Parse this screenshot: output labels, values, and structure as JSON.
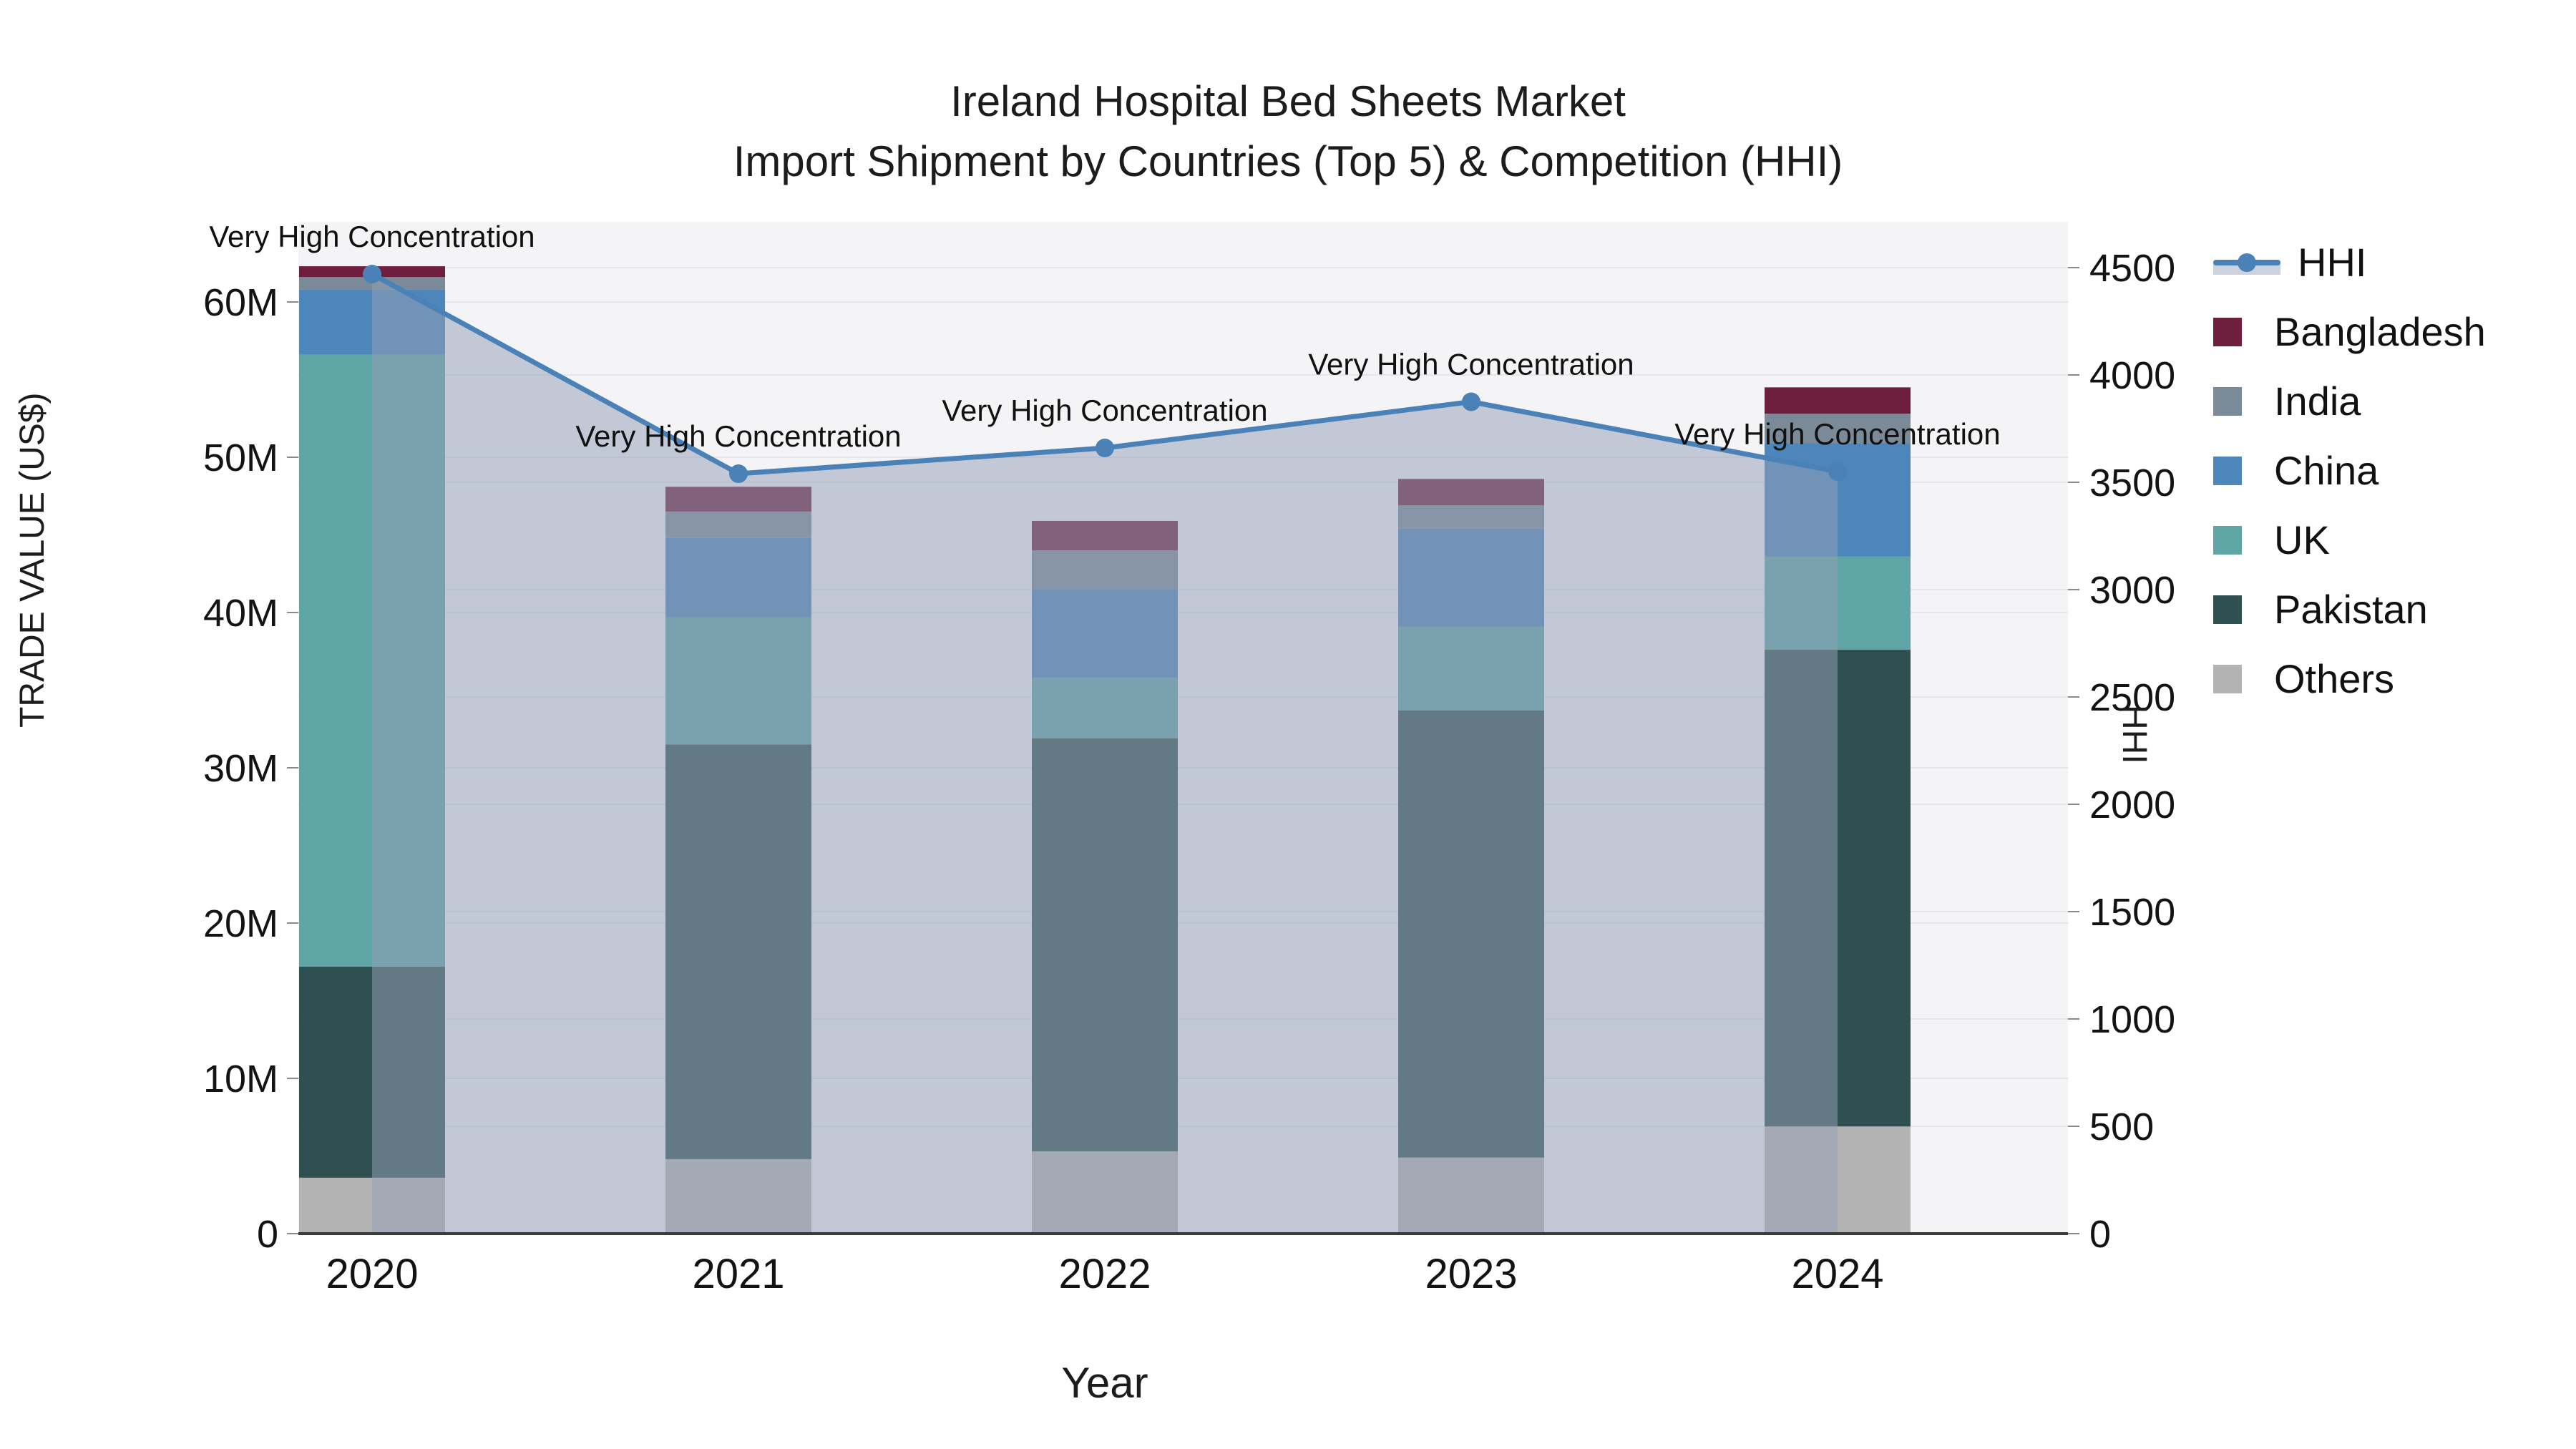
{
  "title": {
    "line1": "Ireland Hospital Bed Sheets Market",
    "line2": "Import Shipment by Countries (Top 5) & Competition (HHI)"
  },
  "axes": {
    "left": {
      "title": "TRADE VALUE (US$)",
      "tick_labels": [
        "0",
        "10M",
        "20M",
        "30M",
        "40M",
        "50M",
        "60M"
      ],
      "tick_values": [
        0,
        10,
        20,
        30,
        40,
        50,
        60
      ],
      "unit": "M US$"
    },
    "right": {
      "title": "HHI",
      "tick_labels": [
        "0",
        "500",
        "1000",
        "1500",
        "2000",
        "2500",
        "3000",
        "3500",
        "4000",
        "4500"
      ],
      "tick_values": [
        0,
        500,
        1000,
        1500,
        2000,
        2500,
        3000,
        3500,
        4000,
        4500
      ]
    },
    "x": {
      "title": "Year",
      "categories": [
        "2020",
        "2021",
        "2022",
        "2023",
        "2024"
      ]
    }
  },
  "legend": {
    "items": [
      {
        "label": "HHI",
        "type": "line",
        "color": "#4a82b8"
      },
      {
        "label": "Bangladesh",
        "type": "box",
        "color": "#6e1f3e"
      },
      {
        "label": "India",
        "type": "box",
        "color": "#7b8a99"
      },
      {
        "label": "China",
        "type": "box",
        "color": "#4c86bb"
      },
      {
        "label": "UK",
        "type": "box",
        "color": "#5fa5a5"
      },
      {
        "label": "Pakistan",
        "type": "box",
        "color": "#2e5050"
      },
      {
        "label": "Others",
        "type": "box",
        "color": "#b3b3b3"
      }
    ]
  },
  "colors": {
    "hhi_line": "#4a82b8",
    "hhi_fill": "rgba(148,160,182,0.52)",
    "plot_bg": "#f4f4f6",
    "grid": "#e4e6ea",
    "axis_line": "#3b3b3b",
    "text": "#131313"
  },
  "chart_data": {
    "type": "bar+line",
    "title": "Ireland Hospital Bed Sheets Market — Import Shipment by Countries (Top 5) & Competition (HHI)",
    "categories": [
      "2020",
      "2021",
      "2022",
      "2023",
      "2024"
    ],
    "bar_value_unit": "million US$",
    "stack_order_bottom_to_top": [
      "Others",
      "Pakistan",
      "UK",
      "China",
      "India",
      "Bangladesh"
    ],
    "series": [
      {
        "name": "Others",
        "color": "#b3b3b3",
        "values": [
          3.6,
          4.8,
          5.3,
          4.9,
          6.9
        ]
      },
      {
        "name": "Pakistan",
        "color": "#2e5050",
        "values": [
          13.6,
          26.7,
          26.6,
          28.8,
          30.7
        ]
      },
      {
        "name": "UK",
        "color": "#5fa5a5",
        "values": [
          39.4,
          8.2,
          3.9,
          5.4,
          6.0
        ]
      },
      {
        "name": "China",
        "color": "#4c86bb",
        "values": [
          4.2,
          5.1,
          5.7,
          6.3,
          7.3
        ]
      },
      {
        "name": "India",
        "color": "#7b8a99",
        "values": [
          0.8,
          1.7,
          2.5,
          1.5,
          1.9
        ]
      },
      {
        "name": "Bangladesh",
        "color": "#6e1f3e",
        "values": [
          0.7,
          1.6,
          1.9,
          1.7,
          1.7
        ]
      }
    ],
    "bar_totals": [
      62.3,
      48.1,
      45.9,
      48.6,
      54.5
    ],
    "line_series": {
      "name": "HHI",
      "axis": "right",
      "color": "#4a82b8",
      "values": [
        4470,
        3540,
        3660,
        3875,
        3550
      ],
      "fill_to_zero": true
    },
    "annotations": [
      "Very High Concentration",
      "Very High Concentration",
      "Very High Concentration",
      "Very High Concentration",
      "Very High Concentration"
    ],
    "ylim_left": [
      0,
      65.2
    ],
    "ylim_right": [
      0,
      4713
    ],
    "grid": true,
    "legend_position": "right"
  }
}
